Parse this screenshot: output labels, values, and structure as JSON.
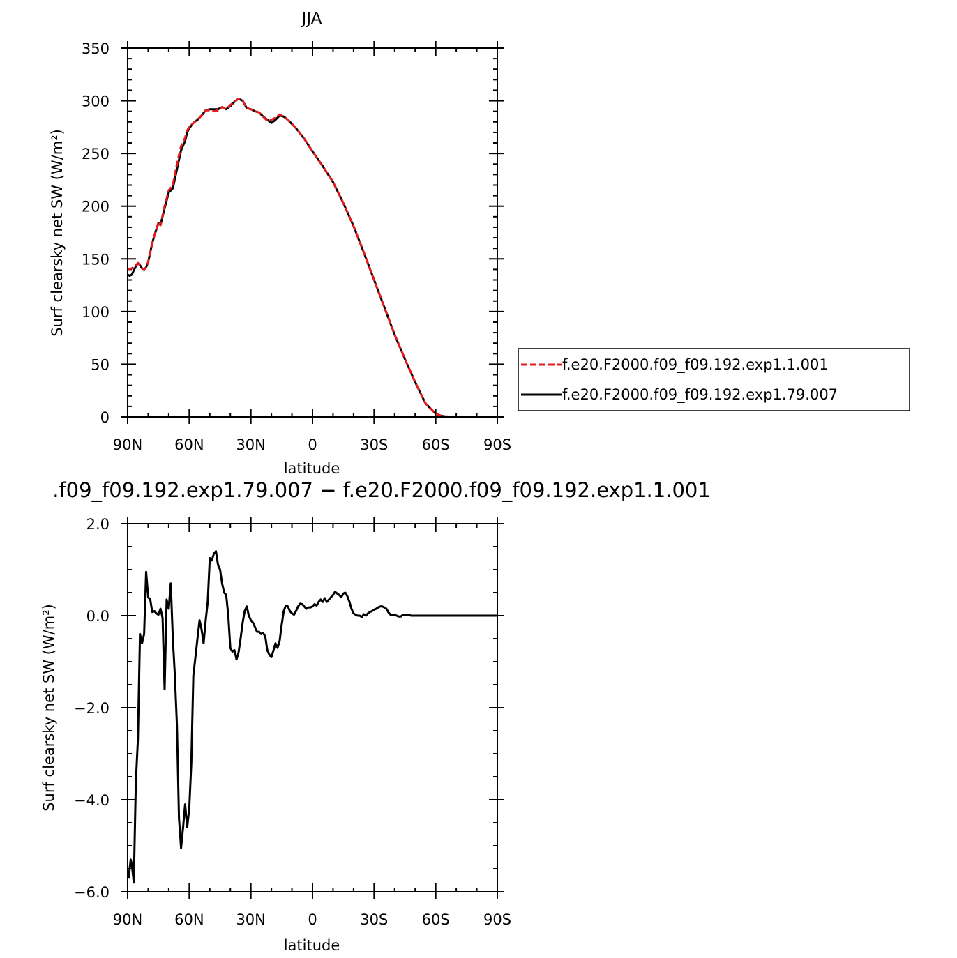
{
  "chart_data": [
    {
      "type": "line",
      "title": "JJA",
      "xlabel": "latitude",
      "ylabel": "Surf clearsky net SW (W/m²)",
      "xlim": [
        90,
        -90
      ],
      "ylim": [
        0,
        350
      ],
      "x_ticks": [
        90,
        60,
        30,
        0,
        -30,
        -60,
        -90
      ],
      "x_tick_labels": [
        "90N",
        "60N",
        "30N",
        "0",
        "30S",
        "60S",
        "90S"
      ],
      "y_ticks": [
        0,
        50,
        100,
        150,
        200,
        250,
        300,
        350
      ],
      "y_tick_labels": [
        "0",
        "50",
        "100",
        "150",
        "200",
        "250",
        "300",
        "350"
      ],
      "legend_position": "right",
      "series": [
        {
          "name": "f.e20.F2000.f09_f09.192.exp1.1.001",
          "color": "#e41a1c",
          "style": "dashed",
          "x": [
            90,
            88,
            86,
            85,
            84,
            83,
            82,
            81,
            80,
            78,
            77,
            76,
            75,
            74,
            72,
            70,
            68,
            66,
            64,
            62,
            61,
            60,
            58,
            56,
            54,
            52,
            50,
            48,
            46,
            44,
            42,
            40,
            38,
            36,
            34,
            32,
            30,
            28,
            26,
            24,
            22,
            20,
            18,
            16,
            14,
            12,
            10,
            8,
            6,
            4,
            2,
            0,
            -5,
            -10,
            -15,
            -20,
            -25,
            -30,
            -35,
            -40,
            -45,
            -50,
            -55,
            -60,
            -62,
            -64,
            -66,
            -68,
            -70,
            -75,
            -80
          ],
          "y": [
            140,
            141,
            144,
            146,
            144,
            141,
            140,
            142,
            147,
            165,
            172,
            178,
            185,
            182,
            200,
            215,
            220,
            240,
            257,
            265,
            272,
            275,
            279,
            282,
            286,
            291,
            291,
            290,
            291,
            294,
            292,
            296,
            299,
            302,
            300,
            293,
            292,
            290,
            289,
            285,
            281,
            282,
            284,
            287,
            285,
            282,
            278,
            274,
            269,
            264,
            258,
            252,
            238,
            223,
            203,
            181,
            156,
            130,
            104,
            78,
            55,
            33,
            13,
            3,
            1.5,
            0.6,
            0.3,
            0.1,
            0,
            0,
            0
          ]
        },
        {
          "name": "f.e20.F2000.f09_f09.192.exp1.79.007",
          "color": "#000000",
          "style": "solid",
          "x": [
            90,
            89,
            88,
            87,
            86,
            85,
            84,
            83,
            82,
            81,
            80,
            78,
            77,
            76,
            75,
            74,
            72,
            70,
            68,
            66,
            64,
            62,
            61,
            60,
            58,
            56,
            54,
            52,
            50,
            48,
            46,
            44,
            42,
            40,
            38,
            36,
            34,
            32,
            30,
            28,
            26,
            24,
            22,
            20,
            18,
            16,
            14,
            12,
            10,
            8,
            6,
            4,
            2,
            0,
            -5,
            -10,
            -15,
            -20,
            -25,
            -30,
            -35,
            -40,
            -45,
            -50,
            -55,
            -60,
            -62,
            -64,
            -66,
            -68,
            -70,
            -75,
            -80
          ],
          "y": [
            135,
            134,
            135,
            139,
            143,
            146,
            144,
            141,
            140,
            142,
            147,
            165,
            172,
            178,
            184,
            182,
            198,
            213,
            217,
            235,
            253,
            262,
            270,
            274,
            279,
            282,
            286,
            291,
            292,
            292,
            292,
            294,
            292,
            295,
            299,
            302,
            300,
            293,
            292,
            290,
            289,
            285,
            282,
            279,
            282,
            286,
            285,
            282,
            278,
            274,
            269,
            264,
            258,
            252,
            238,
            223,
            203,
            181,
            156,
            130,
            104,
            78,
            55,
            33,
            13,
            3,
            1.5,
            0.6,
            0.3,
            0.1,
            0,
            0,
            0
          ]
        }
      ]
    },
    {
      "type": "line",
      "title": ".f09_f09.192.exp1.79.007 − f.e20.F2000.f09_f09.192.exp1.1.001",
      "xlabel": "latitude",
      "ylabel": "Surf clearsky net SW (W/m²)",
      "xlim": [
        90,
        -90
      ],
      "ylim": [
        -6,
        2
      ],
      "x_ticks": [
        90,
        60,
        30,
        0,
        -30,
        -60,
        -90
      ],
      "x_tick_labels": [
        "90N",
        "60N",
        "30N",
        "0",
        "30S",
        "60S",
        "90S"
      ],
      "y_ticks": [
        -6,
        -4,
        -2,
        0,
        2
      ],
      "y_tick_labels": [
        "−6.0",
        "−4.0",
        "−2.0",
        "0.0",
        "2.0"
      ],
      "series": [
        {
          "color": "#000000",
          "style": "solid",
          "x": [
            89.5,
            89,
            88.5,
            88,
            87.5,
            87,
            86,
            85,
            84,
            83,
            82,
            81,
            80,
            79,
            78,
            77,
            76,
            75,
            74,
            73,
            72,
            71,
            70,
            69,
            68,
            67,
            66,
            65,
            64,
            63,
            62,
            61,
            60,
            59,
            58,
            57,
            56,
            55,
            54,
            53,
            52,
            51,
            50,
            49,
            48,
            47,
            46,
            45,
            44,
            43,
            42,
            41,
            40,
            39,
            38,
            37,
            36,
            35,
            34,
            33,
            32,
            31,
            30,
            29,
            28,
            27,
            26,
            25,
            24,
            23,
            22,
            21,
            20,
            19,
            18,
            17,
            16,
            15,
            14,
            13,
            12,
            11,
            10,
            9,
            8,
            7,
            6,
            5,
            4,
            3,
            2,
            1,
            0,
            -1,
            -2,
            -3,
            -4,
            -5,
            -6,
            -7,
            -8,
            -9,
            -10,
            -11,
            -12,
            -13,
            -14,
            -15,
            -16,
            -17,
            -18,
            -19,
            -20,
            -21,
            -22,
            -23,
            -24,
            -25,
            -26,
            -27,
            -28,
            -29,
            -30,
            -31,
            -32,
            -33,
            -34,
            -35,
            -36,
            -37,
            -38,
            -39,
            -40,
            -41,
            -42,
            -43,
            -44,
            -45,
            -46,
            -47,
            -48,
            -49,
            -50,
            -51,
            -52,
            -53,
            -54,
            -55,
            -56,
            -57,
            -58,
            -59,
            -60,
            -62,
            -64,
            -66,
            -68,
            -70,
            -72,
            -75,
            -80,
            -85,
            -90
          ],
          "y": [
            -5.7,
            -5.5,
            -5.3,
            -5.4,
            -5.6,
            -5.8,
            -3.6,
            -2.7,
            -0.4,
            -0.6,
            -0.4,
            0.95,
            0.4,
            0.35,
            0.08,
            0.1,
            0.05,
            0.02,
            0.15,
            -0.05,
            -1.6,
            0.35,
            0.15,
            0.7,
            -0.5,
            -1.3,
            -2.4,
            -4.4,
            -5.05,
            -4.6,
            -4.1,
            -4.6,
            -4.2,
            -3.2,
            -1.3,
            -0.9,
            -0.5,
            -0.1,
            -0.3,
            -0.6,
            -0.1,
            0.3,
            1.25,
            1.2,
            1.35,
            1.4,
            1.1,
            1.0,
            0.7,
            0.5,
            0.45,
            0.0,
            -0.7,
            -0.78,
            -0.75,
            -0.95,
            -0.8,
            -0.5,
            -0.15,
            0.1,
            0.2,
            0.0,
            -0.1,
            -0.15,
            -0.25,
            -0.35,
            -0.35,
            -0.4,
            -0.38,
            -0.45,
            -0.75,
            -0.85,
            -0.9,
            -0.75,
            -0.6,
            -0.7,
            -0.55,
            -0.2,
            0.1,
            0.22,
            0.2,
            0.1,
            0.05,
            0.02,
            0.1,
            0.2,
            0.26,
            0.25,
            0.2,
            0.15,
            0.18,
            0.18,
            0.2,
            0.25,
            0.22,
            0.3,
            0.35,
            0.3,
            0.38,
            0.3,
            0.35,
            0.4,
            0.45,
            0.52,
            0.48,
            0.45,
            0.4,
            0.48,
            0.5,
            0.42,
            0.3,
            0.15,
            0.05,
            0.02,
            0.0,
            0.0,
            -0.03,
            0.03,
            0.0,
            0.05,
            0.08,
            0.1,
            0.13,
            0.15,
            0.18,
            0.2,
            0.2,
            0.18,
            0.15,
            0.07,
            0.02,
            0.02,
            0.02,
            0.0,
            -0.02,
            -0.02,
            0.02,
            0.02,
            0.02,
            0.02,
            0.0,
            0.0,
            0.0,
            0.0,
            0.0,
            0.0,
            0.0,
            0.0,
            0.0,
            0.0,
            0.0,
            0.0,
            0.0,
            0.0,
            0.0,
            0.0,
            0.0,
            0.0,
            0.0,
            0.0,
            0.0,
            0.0,
            0.0
          ]
        }
      ]
    }
  ]
}
